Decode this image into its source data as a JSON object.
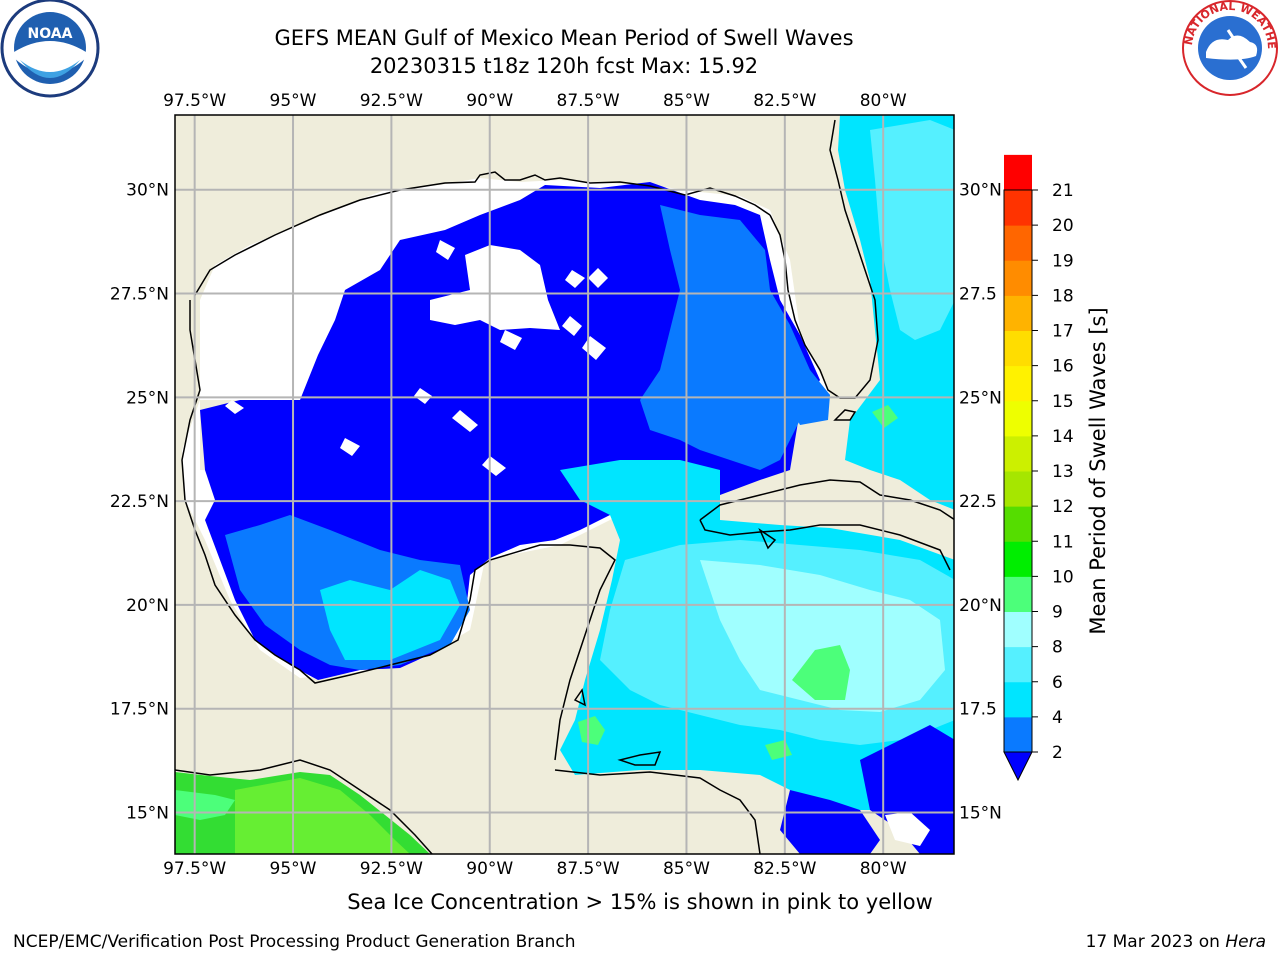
{
  "title": {
    "line1": "GEFS MEAN Gulf of Mexico Mean Period of Swell Waves",
    "line2": "20230315 t18z 120h fcst   Max: 15.92"
  },
  "logos": {
    "left": {
      "icon": "noaa-logo-icon",
      "text": "NOAA"
    },
    "right": {
      "icon": "nws-logo-icon",
      "text": "NATIONAL WEATHER SERVICE"
    }
  },
  "map": {
    "region": "Gulf of Mexico",
    "lon_range": [
      -98.0,
      -78.2
    ],
    "lat_range": [
      14.0,
      31.8
    ],
    "lon_ticks": [
      "97.5°W",
      "95°W",
      "92.5°W",
      "90°W",
      "87.5°W",
      "85°W",
      "82.5°W",
      "80°W"
    ],
    "lon_values": [
      -97.5,
      -95,
      -92.5,
      -90,
      -87.5,
      -85,
      -82.5,
      -80
    ],
    "lat_ticks_left": [
      "30°N",
      "27.5°N",
      "25°N",
      "22.5°N",
      "20°N",
      "17.5°N",
      "15°N"
    ],
    "lat_ticks_right": [
      "30°N",
      "27.5",
      "25°N",
      "22.5",
      "20°N",
      "17.5",
      "15°N"
    ],
    "lat_values": [
      30,
      27.5,
      25,
      22.5,
      20,
      17.5,
      15
    ],
    "grid": true,
    "land_color": "#efeddb",
    "no_data_color": "#ffffff"
  },
  "colorbar": {
    "label": "Mean Period of Swell Waves [s]",
    "tick_labels": [
      "2",
      "4",
      "6",
      "8",
      "9",
      "10",
      "11",
      "12",
      "13",
      "14",
      "15",
      "16",
      "17",
      "18",
      "19",
      "20",
      "21"
    ],
    "colors": [
      "#0a7aff",
      "#00e5ff",
      "#55f0ff",
      "#a0ffff",
      "#4cff7a",
      "#00ee00",
      "#55dd00",
      "#a6e600",
      "#ccf000",
      "#eeff00",
      "#fff200",
      "#ffdd00",
      "#ffb300",
      "#ff8c00",
      "#ff6600",
      "#ff3300",
      "#ff0000"
    ],
    "extend_color": "#0000ff"
  },
  "note": "Sea Ice Concentration > 15% is shown in pink to yellow",
  "footer": {
    "left": "NCEP/EMC/Verification Post Processing Product Generation Branch",
    "right_date": "17 Mar 2023 on ",
    "right_machine": "Hera"
  }
}
